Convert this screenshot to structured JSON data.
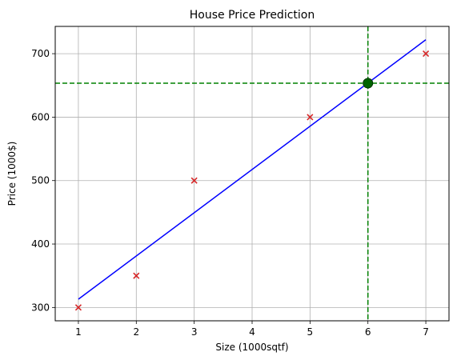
{
  "chart_data": {
    "type": "scatter",
    "title": "House Price Prediction",
    "xlabel": "Size (1000sqtf)",
    "ylabel": "Price (1000$)",
    "xlim": [
      0.6,
      7.4
    ],
    "ylim": [
      279,
      743
    ],
    "x_ticks": [
      1,
      2,
      3,
      4,
      5,
      6,
      7
    ],
    "x_tick_labels": [
      "1",
      "2",
      "3",
      "4",
      "5",
      "6",
      "7"
    ],
    "y_ticks": [
      300,
      400,
      500,
      600,
      700
    ],
    "y_tick_labels": [
      "300",
      "400",
      "500",
      "600",
      "700"
    ],
    "grid": true,
    "series": [
      {
        "kind": "scatter",
        "marker": "x",
        "color": "#d62728",
        "x": [
          1,
          2,
          3,
          5,
          7
        ],
        "y": [
          300,
          350,
          500,
          600,
          700
        ]
      },
      {
        "kind": "line",
        "color": "#0000ff",
        "x": [
          1,
          7
        ],
        "y": [
          313,
          722
        ]
      },
      {
        "kind": "point",
        "marker": "circle",
        "color": "#006400",
        "x": [
          6
        ],
        "y": [
          653.5
        ]
      }
    ],
    "reference_lines": [
      {
        "orientation": "vertical",
        "value": 6,
        "style": "dashed",
        "color": "#008000"
      },
      {
        "orientation": "horizontal",
        "value": 653.5,
        "style": "dashed",
        "color": "#008000"
      }
    ]
  }
}
